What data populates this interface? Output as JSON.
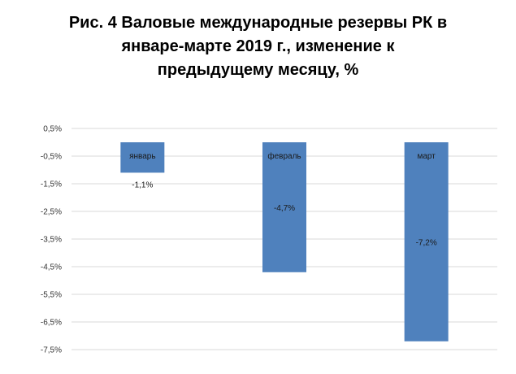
{
  "chart_data": {
    "type": "bar",
    "title_lines": [
      "Рис. 4 Валовые международные резервы РК в",
      "январе-марте 2019 г., изменение к",
      "предыдущему месяцу, %"
    ],
    "categories": [
      "январь",
      "февраль",
      "март"
    ],
    "values": [
      -1.1,
      -4.7,
      -7.2
    ],
    "value_labels": [
      "-1,1%",
      "-4,7%",
      "-7,2%"
    ],
    "ylim": [
      -7.5,
      0.5
    ],
    "yticks": [
      0.5,
      -0.5,
      -1.5,
      -2.5,
      -3.5,
      -4.5,
      -5.5,
      -6.5,
      -7.5
    ],
    "ytick_labels": [
      "0,5%",
      "-0,5%",
      "-1,5%",
      "-2,5%",
      "-3,5%",
      "-4,5%",
      "-5,5%",
      "-6,5%",
      "-7,5%"
    ],
    "bar_color": "#4F81BD",
    "grid": true
  }
}
